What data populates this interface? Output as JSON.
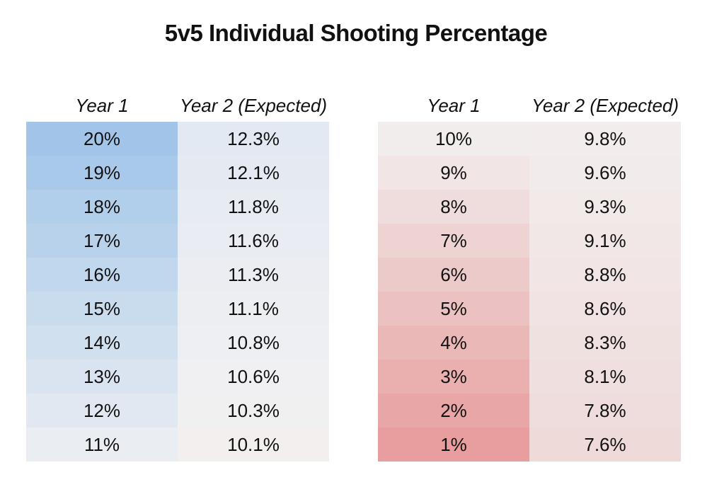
{
  "title": "5v5 Individual Shooting Percentage",
  "tables": [
    {
      "headers": [
        "Year 1",
        "Year 2 (Expected)"
      ],
      "rows": [
        {
          "year1": "20%",
          "year2": "12.3%",
          "c1": "#a2c4e8",
          "c2": "#e3e9f2"
        },
        {
          "year1": "19%",
          "year2": "12.1%",
          "c1": "#a9c9ea",
          "c2": "#e5eaf2"
        },
        {
          "year1": "18%",
          "year2": "11.8%",
          "c1": "#b1ceeb",
          "c2": "#e7ebf2"
        },
        {
          "year1": "17%",
          "year2": "11.6%",
          "c1": "#b9d2ec",
          "c2": "#e9ecf2"
        },
        {
          "year1": "16%",
          "year2": "11.3%",
          "c1": "#c1d7ed",
          "c2": "#ebedf2"
        },
        {
          "year1": "15%",
          "year2": "11.1%",
          "c1": "#c9dcee",
          "c2": "#edeef2"
        },
        {
          "year1": "14%",
          "year2": "10.8%",
          "c1": "#d1e0ef",
          "c2": "#eeeff2"
        },
        {
          "year1": "13%",
          "year2": "10.6%",
          "c1": "#d9e4f0",
          "c2": "#f0f0f2"
        },
        {
          "year1": "12%",
          "year2": "10.3%",
          "c1": "#e1e8f1",
          "c2": "#f1f0f1"
        },
        {
          "year1": "11%",
          "year2": "10.1%",
          "c1": "#eaedf2",
          "c2": "#f3efef"
        }
      ]
    },
    {
      "headers": [
        "Year 1",
        "Year 2 (Expected)"
      ],
      "rows": [
        {
          "year1": "10%",
          "year2": "9.8%",
          "c1": "#f2eded",
          "c2": "#f3ecec"
        },
        {
          "year1": "9%",
          "year2": "9.6%",
          "c1": "#f1e5e5",
          "c2": "#f2ebeb"
        },
        {
          "year1": "8%",
          "year2": "9.3%",
          "c1": "#efdcdc",
          "c2": "#f2e9e9"
        },
        {
          "year1": "7%",
          "year2": "9.1%",
          "c1": "#eed3d3",
          "c2": "#f2e7e7"
        },
        {
          "year1": "6%",
          "year2": "8.8%",
          "c1": "#edcaca",
          "c2": "#f1e5e5"
        },
        {
          "year1": "5%",
          "year2": "8.6%",
          "c1": "#ecc1c1",
          "c2": "#f1e3e3"
        },
        {
          "year1": "4%",
          "year2": "8.3%",
          "c1": "#ebb8b8",
          "c2": "#f0e1e1"
        },
        {
          "year1": "3%",
          "year2": "8.1%",
          "c1": "#eaafaf",
          "c2": "#f0dfdf"
        },
        {
          "year1": "2%",
          "year2": "7.8%",
          "c1": "#e9a6a6",
          "c2": "#efdcdc"
        },
        {
          "year1": "1%",
          "year2": "7.6%",
          "c1": "#e89e9e",
          "c2": "#efdada"
        }
      ]
    }
  ],
  "chart_data": {
    "type": "table",
    "title": "5v5 Individual Shooting Percentage",
    "columns": [
      "Year 1",
      "Year 2 (Expected)"
    ],
    "x": [
      20,
      19,
      18,
      17,
      16,
      15,
      14,
      13,
      12,
      11,
      10,
      9,
      8,
      7,
      6,
      5,
      4,
      3,
      2,
      1
    ],
    "series": [
      {
        "name": "Year 2 (Expected)",
        "values": [
          12.3,
          12.1,
          11.8,
          11.6,
          11.3,
          11.1,
          10.8,
          10.6,
          10.3,
          10.1,
          9.8,
          9.6,
          9.3,
          9.1,
          8.8,
          8.6,
          8.3,
          8.1,
          7.8,
          7.6
        ]
      }
    ],
    "colors": {
      "high": "#a2c4e8",
      "low": "#e89e9e",
      "neutral": "#f2efef"
    }
  }
}
